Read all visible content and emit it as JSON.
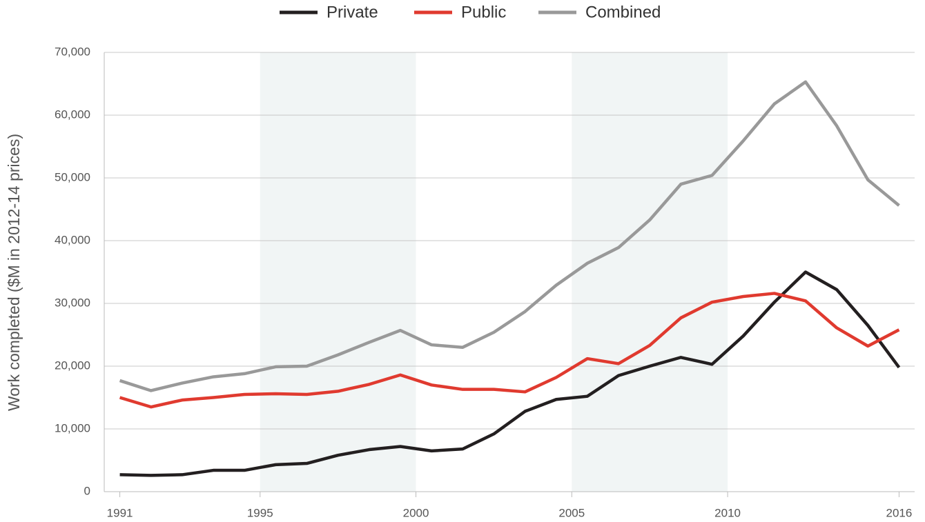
{
  "chart_data": {
    "type": "line",
    "y_label": "Work completed ($M in 2012-14 prices)",
    "x": [
      1991,
      1992,
      1993,
      1994,
      1995,
      1996,
      1997,
      1998,
      1999,
      2000,
      2001,
      2002,
      2003,
      2004,
      2005,
      2006,
      2007,
      2008,
      2009,
      2010,
      2011,
      2012,
      2013,
      2014,
      2015,
      2016
    ],
    "series": [
      {
        "name": "Private",
        "color": "#231f20",
        "values": [
          2700,
          2600,
          2700,
          3400,
          3400,
          4300,
          4500,
          5800,
          6700,
          7200,
          6500,
          6800,
          9200,
          12800,
          14700,
          15200,
          18500,
          20000,
          21400,
          20300,
          24800,
          30200,
          35000,
          32200,
          26500,
          19800
        ]
      },
      {
        "name": "Public",
        "color": "#e03a2f",
        "values": [
          15000,
          13500,
          14600,
          15000,
          15500,
          15600,
          15500,
          16000,
          17100,
          18600,
          17000,
          16300,
          16300,
          15900,
          18200,
          21200,
          20400,
          23300,
          27700,
          30200,
          31100,
          31600,
          30400,
          26100,
          23200,
          25800
        ]
      },
      {
        "name": "Combined",
        "color": "#999999",
        "values": [
          17700,
          16100,
          17300,
          18300,
          18800,
          19900,
          20000,
          21800,
          23800,
          25700,
          23400,
          23000,
          25400,
          28700,
          32900,
          36400,
          38900,
          43300,
          49000,
          50400,
          55900,
          61800,
          65300,
          58300,
          49700,
          45600
        ]
      }
    ],
    "xlim": [
      1990.5,
      2016.5
    ],
    "xticks": [
      1991,
      {
        "value": 1995.5,
        "label": "1995"
      },
      {
        "value": 2000.5,
        "label": "2000"
      },
      {
        "value": 2005.5,
        "label": "2005"
      },
      {
        "value": 2010.5,
        "label": "2010"
      },
      2016
    ],
    "ylim": [
      0,
      70000
    ],
    "yticks": [
      0,
      {
        "value": 10000,
        "label": "10,000"
      },
      {
        "value": 20000,
        "label": "20,000"
      },
      {
        "value": 30000,
        "label": "30,000"
      },
      {
        "value": 40000,
        "label": "40,000"
      },
      {
        "value": 50000,
        "label": "50,000"
      },
      {
        "value": 60000,
        "label": "60,000"
      },
      {
        "value": 70000,
        "label": "70,000"
      }
    ],
    "shaded_ranges": [
      [
        1995.5,
        2000.5
      ],
      [
        2005.5,
        2010.5
      ]
    ],
    "shade_color": "#f1f5f5",
    "grid": true,
    "legend": "top"
  }
}
